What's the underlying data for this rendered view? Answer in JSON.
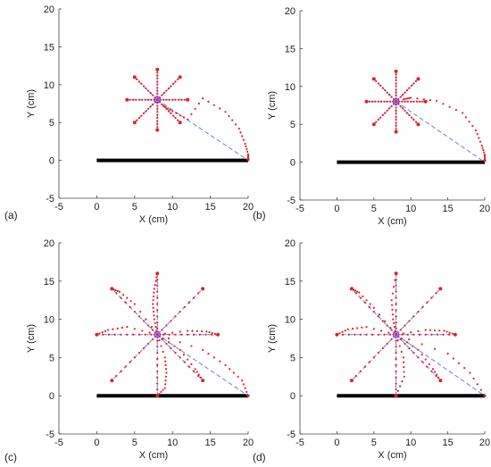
{
  "chart_data": [
    {
      "panel_label": "(a)",
      "type": "scatter",
      "xlabel": "X (cm)",
      "ylabel": "Y (cm)",
      "xlim": [
        -5,
        20
      ],
      "ylim": [
        -5,
        20
      ],
      "xticks": [
        -5,
        0,
        5,
        10,
        15,
        20
      ],
      "yticks": [
        -5,
        0,
        5,
        10,
        15,
        20
      ],
      "grid": false,
      "center": [
        8,
        8
      ],
      "base_segment": {
        "x": [
          0,
          20
        ],
        "y": [
          0,
          0
        ],
        "color": "#000000"
      },
      "target_lines": {
        "color": "#6b7fd7",
        "endpoints": [
          [
            8,
            12
          ],
          [
            11,
            11
          ],
          [
            12,
            8
          ],
          [
            11,
            5
          ],
          [
            8,
            4
          ],
          [
            5,
            5
          ],
          [
            4,
            8
          ],
          [
            5,
            11
          ],
          [
            20,
            0
          ]
        ]
      },
      "trajectory_points": {
        "color": "#e0202a",
        "curved": [
          [
            [
              8.8,
              7.2
            ],
            [
              10,
              6.5
            ],
            [
              12,
              5.4
            ],
            [
              14,
              8.2
            ],
            [
              17,
              6.4
            ],
            [
              18.8,
              4.2
            ],
            [
              19.6,
              2.2
            ],
            [
              20,
              0.8
            ],
            [
              20,
              0.1
            ]
          ]
        ],
        "reach_endpoints": [
          [
            8,
            12
          ],
          [
            11,
            11
          ],
          [
            12,
            8
          ],
          [
            11,
            5
          ],
          [
            8,
            4
          ],
          [
            5,
            5
          ],
          [
            4,
            8
          ],
          [
            5,
            11
          ]
        ]
      }
    },
    {
      "panel_label": "(b)",
      "type": "scatter",
      "xlabel": "X (cm)",
      "ylabel": "Y (cm)",
      "xlim": [
        -5,
        20
      ],
      "ylim": [
        -5,
        20
      ],
      "xticks": [
        -5,
        0,
        5,
        10,
        15,
        20
      ],
      "yticks": [
        -5,
        0,
        5,
        10,
        15,
        20
      ],
      "grid": false,
      "center": [
        8,
        8
      ],
      "base_segment": {
        "x": [
          0,
          20
        ],
        "y": [
          0,
          0
        ],
        "color": "#000000"
      },
      "target_lines": {
        "color": "#6b7fd7",
        "endpoints": [
          [
            8,
            12
          ],
          [
            11,
            11
          ],
          [
            12,
            8
          ],
          [
            11,
            5
          ],
          [
            8,
            4
          ],
          [
            5,
            5
          ],
          [
            4,
            8
          ],
          [
            5,
            11
          ],
          [
            20,
            0
          ]
        ]
      },
      "trajectory_points": {
        "color": "#e0202a",
        "curved": [
          [
            [
              9,
              8.3
            ],
            [
              10,
              8.5
            ],
            [
              13.5,
              8.1
            ],
            [
              17,
              6.5
            ],
            [
              18.8,
              4.2
            ],
            [
              19.6,
              2.2
            ],
            [
              20,
              1
            ],
            [
              20,
              0.2
            ]
          ]
        ],
        "reach_endpoints": [
          [
            8,
            12
          ],
          [
            11,
            11
          ],
          [
            12,
            8
          ],
          [
            11,
            5
          ],
          [
            8,
            4
          ],
          [
            5,
            5
          ],
          [
            4,
            8
          ],
          [
            5,
            11
          ]
        ]
      }
    },
    {
      "panel_label": "(c)",
      "type": "scatter",
      "xlabel": "X (cm)",
      "ylabel": "Y (cm)",
      "xlim": [
        -5,
        20
      ],
      "ylim": [
        -5,
        20
      ],
      "xticks": [
        -5,
        0,
        5,
        10,
        15,
        20
      ],
      "yticks": [
        -5,
        0,
        5,
        10,
        15,
        20
      ],
      "grid": false,
      "center": [
        8,
        8
      ],
      "base_segment": {
        "x": [
          0,
          20
        ],
        "y": [
          0,
          0
        ],
        "color": "#000000"
      },
      "target_lines": {
        "color": "#6b7fd7",
        "endpoints": [
          [
            8,
            16
          ],
          [
            14,
            14
          ],
          [
            16,
            8
          ],
          [
            14,
            2
          ],
          [
            8,
            0
          ],
          [
            2,
            2
          ],
          [
            0,
            8
          ],
          [
            2,
            14
          ],
          [
            20,
            0
          ]
        ]
      },
      "trajectory_points": {
        "color": "#e0202a",
        "curved": [
          [
            [
              8,
              8
            ],
            [
              7.6,
              10
            ],
            [
              7.4,
              12
            ],
            [
              7.6,
              14
            ],
            [
              8,
              16
            ]
          ],
          [
            [
              8,
              8
            ],
            [
              9,
              5
            ],
            [
              9.2,
              3
            ],
            [
              9,
              1
            ],
            [
              8,
              0
            ]
          ],
          [
            [
              8,
              8
            ],
            [
              5,
              12
            ],
            [
              3,
              13.6
            ],
            [
              2,
              14
            ]
          ],
          [
            [
              8,
              8
            ],
            [
              4,
              9
            ],
            [
              1.5,
              8.6
            ],
            [
              0,
              8
            ]
          ],
          [
            [
              8,
              8
            ],
            [
              12,
              8.5
            ],
            [
              14.5,
              8.4
            ],
            [
              16,
              8
            ]
          ],
          [
            [
              8,
              8
            ],
            [
              14,
              6
            ],
            [
              17,
              4
            ],
            [
              19.2,
              2
            ],
            [
              20,
              0
            ]
          ],
          [
            [
              8,
              8
            ],
            [
              11,
              6
            ],
            [
              13,
              3.5
            ],
            [
              14,
              2
            ]
          ]
        ],
        "reach_endpoints": [
          [
            8,
            16
          ],
          [
            14,
            14
          ],
          [
            16,
            8
          ],
          [
            14,
            2
          ],
          [
            8,
            0
          ],
          [
            2,
            2
          ],
          [
            0,
            8
          ],
          [
            2,
            14
          ]
        ]
      }
    },
    {
      "panel_label": "(d)",
      "type": "scatter",
      "xlabel": "X (cm)",
      "ylabel": "Y (cm)",
      "xlim": [
        -5,
        20
      ],
      "ylim": [
        -5,
        20
      ],
      "xticks": [
        -5,
        0,
        5,
        10,
        15,
        20
      ],
      "yticks": [
        -5,
        0,
        5,
        10,
        15,
        20
      ],
      "grid": false,
      "center": [
        8,
        8
      ],
      "base_segment": {
        "x": [
          0,
          20
        ],
        "y": [
          0,
          0
        ],
        "color": "#000000"
      },
      "target_lines": {
        "color": "#6b7fd7",
        "endpoints": [
          [
            8,
            16
          ],
          [
            14,
            14
          ],
          [
            16,
            8
          ],
          [
            14,
            2
          ],
          [
            8,
            0
          ],
          [
            2,
            2
          ],
          [
            0,
            8
          ],
          [
            2,
            14
          ],
          [
            20,
            0
          ]
        ]
      },
      "trajectory_points": {
        "color": "#e0202a",
        "curved": [
          [
            [
              8,
              8
            ],
            [
              7.6,
              10
            ],
            [
              7.4,
              12.5
            ],
            [
              8,
              16
            ]
          ],
          [
            [
              8,
              8
            ],
            [
              9,
              5
            ],
            [
              9.1,
              2.5
            ],
            [
              8,
              0
            ]
          ],
          [
            [
              8,
              8
            ],
            [
              5,
              11.5
            ],
            [
              3,
              13.5
            ],
            [
              2,
              14
            ]
          ],
          [
            [
              8,
              8
            ],
            [
              4,
              9
            ],
            [
              1.5,
              8.7
            ],
            [
              0,
              8
            ]
          ],
          [
            [
              8,
              8
            ],
            [
              12,
              8.6
            ],
            [
              14.5,
              8.5
            ],
            [
              16,
              8
            ]
          ],
          [
            [
              8,
              8
            ],
            [
              15,
              5.5
            ],
            [
              18,
              3
            ],
            [
              20,
              0
            ]
          ],
          [
            [
              8,
              8
            ],
            [
              11,
              6
            ],
            [
              13,
              3.5
            ],
            [
              14,
              2
            ]
          ]
        ],
        "reach_endpoints": [
          [
            8,
            16
          ],
          [
            14,
            14
          ],
          [
            16,
            8
          ],
          [
            14,
            2
          ],
          [
            8,
            0
          ],
          [
            2,
            2
          ],
          [
            0,
            8
          ],
          [
            2,
            14
          ]
        ]
      }
    }
  ]
}
